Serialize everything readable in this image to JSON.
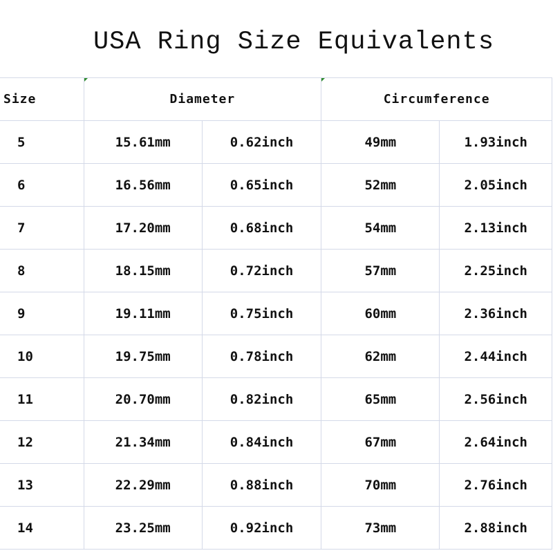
{
  "title": "USA Ring Size Equivalents",
  "header": {
    "size": "Size",
    "diameter": "Diameter",
    "circumference": "Circumference"
  },
  "rows": [
    {
      "size": "5",
      "dia_mm": "15.61mm",
      "dia_in": "0.62inch",
      "circ_mm": "49mm",
      "circ_in": "1.93inch"
    },
    {
      "size": "6",
      "dia_mm": "16.56mm",
      "dia_in": "0.65inch",
      "circ_mm": "52mm",
      "circ_in": "2.05inch"
    },
    {
      "size": "7",
      "dia_mm": "17.20mm",
      "dia_in": "0.68inch",
      "circ_mm": "54mm",
      "circ_in": "2.13inch"
    },
    {
      "size": "8",
      "dia_mm": "18.15mm",
      "dia_in": "0.72inch",
      "circ_mm": "57mm",
      "circ_in": "2.25inch"
    },
    {
      "size": "9",
      "dia_mm": "19.11mm",
      "dia_in": "0.75inch",
      "circ_mm": "60mm",
      "circ_in": "2.36inch"
    },
    {
      "size": "10",
      "dia_mm": "19.75mm",
      "dia_in": "0.78inch",
      "circ_mm": "62mm",
      "circ_in": "2.44inch"
    },
    {
      "size": "11",
      "dia_mm": "20.70mm",
      "dia_in": "0.82inch",
      "circ_mm": "65mm",
      "circ_in": "2.56inch"
    },
    {
      "size": "12",
      "dia_mm": "21.34mm",
      "dia_in": "0.84inch",
      "circ_mm": "67mm",
      "circ_in": "2.64inch"
    },
    {
      "size": "13",
      "dia_mm": "22.29mm",
      "dia_in": "0.88inch",
      "circ_mm": "70mm",
      "circ_in": "2.76inch"
    },
    {
      "size": "14",
      "dia_mm": "23.25mm",
      "dia_in": "0.92inch",
      "circ_mm": "73mm",
      "circ_in": "2.88inch"
    }
  ],
  "colors": {
    "grid": "#d4d9e8",
    "text": "#111111",
    "marker": "#2e8b2e"
  }
}
